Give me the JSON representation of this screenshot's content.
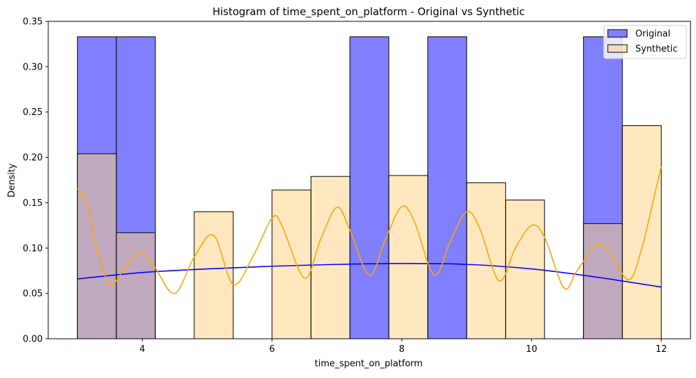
{
  "chart_data": {
    "type": "bar",
    "title": "Histogram of time_spent_on_platform - Original vs Synthetic",
    "xlabel": "time_spent_on_platform",
    "ylabel": "Density",
    "xlim": [
      2.55,
      12.45
    ],
    "ylim": [
      0,
      0.35
    ],
    "x_ticks": [
      4,
      6,
      8,
      10,
      12
    ],
    "y_ticks": [
      0.0,
      0.05,
      0.1,
      0.15,
      0.2,
      0.25,
      0.3,
      0.35
    ],
    "y_tick_labels": [
      "0.00",
      "0.05",
      "0.10",
      "0.15",
      "0.20",
      "0.25",
      "0.30",
      "0.35"
    ],
    "grid": false,
    "legend_position": "top-right",
    "bin_edges": [
      3.0,
      3.6,
      4.2,
      4.8,
      5.4,
      6.0,
      6.6,
      7.2,
      7.8,
      8.4,
      9.0,
      9.6,
      10.2,
      10.8,
      11.4,
      12.0
    ],
    "series": [
      {
        "name": "Original",
        "color": "#0000ff",
        "fill_color": "#8080ff",
        "density": [
          0.333,
          0.333,
          0,
          0,
          0,
          0,
          0,
          0.333,
          0,
          0.333,
          0,
          0,
          0,
          0.333,
          0
        ],
        "kde": {
          "x": [
            3.0,
            4.0,
            5.0,
            6.0,
            7.0,
            8.0,
            9.0,
            10.0,
            11.0,
            12.0
          ],
          "y": [
            0.066,
            0.073,
            0.077,
            0.08,
            0.082,
            0.083,
            0.082,
            0.077,
            0.068,
            0.057
          ]
        }
      },
      {
        "name": "Synthetic",
        "color": "#ffa500",
        "fill_color": "#ffd280",
        "density": [
          0.204,
          0.117,
          0,
          0.14,
          0,
          0.164,
          0.179,
          0,
          0.18,
          0,
          0.172,
          0.153,
          0,
          0.127,
          0.235
        ],
        "kde": {
          "x": [
            3.0,
            3.15,
            3.3,
            3.5,
            3.7,
            3.9,
            4.0,
            4.2,
            4.5,
            4.8,
            5.1,
            5.4,
            5.7,
            6.0,
            6.15,
            6.5,
            6.75,
            7.0,
            7.2,
            7.5,
            7.75,
            8.0,
            8.2,
            8.5,
            8.75,
            9.0,
            9.2,
            9.5,
            9.75,
            10.0,
            10.2,
            10.5,
            10.7,
            11.0,
            11.2,
            11.5,
            11.7,
            11.9,
            12.0
          ],
          "y": [
            0.166,
            0.148,
            0.1,
            0.06,
            0.075,
            0.093,
            0.095,
            0.078,
            0.05,
            0.09,
            0.114,
            0.06,
            0.09,
            0.133,
            0.125,
            0.067,
            0.11,
            0.145,
            0.12,
            0.07,
            0.11,
            0.146,
            0.128,
            0.07,
            0.108,
            0.14,
            0.122,
            0.064,
            0.1,
            0.125,
            0.112,
            0.056,
            0.075,
            0.103,
            0.095,
            0.065,
            0.1,
            0.16,
            0.19
          ]
        }
      }
    ]
  }
}
